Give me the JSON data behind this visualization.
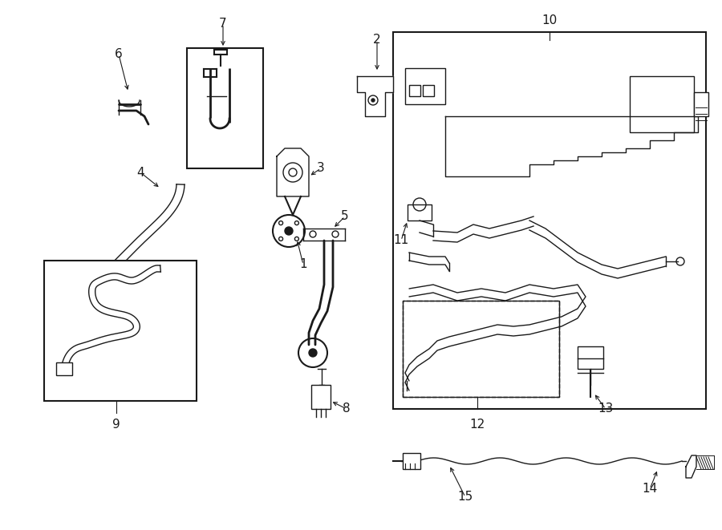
{
  "background_color": "#ffffff",
  "line_color": "#1a1a1a",
  "figsize": [
    9.0,
    6.61
  ],
  "dpi": 100,
  "xlim": [
    0,
    9.0
  ],
  "ylim": [
    0,
    6.61
  ]
}
